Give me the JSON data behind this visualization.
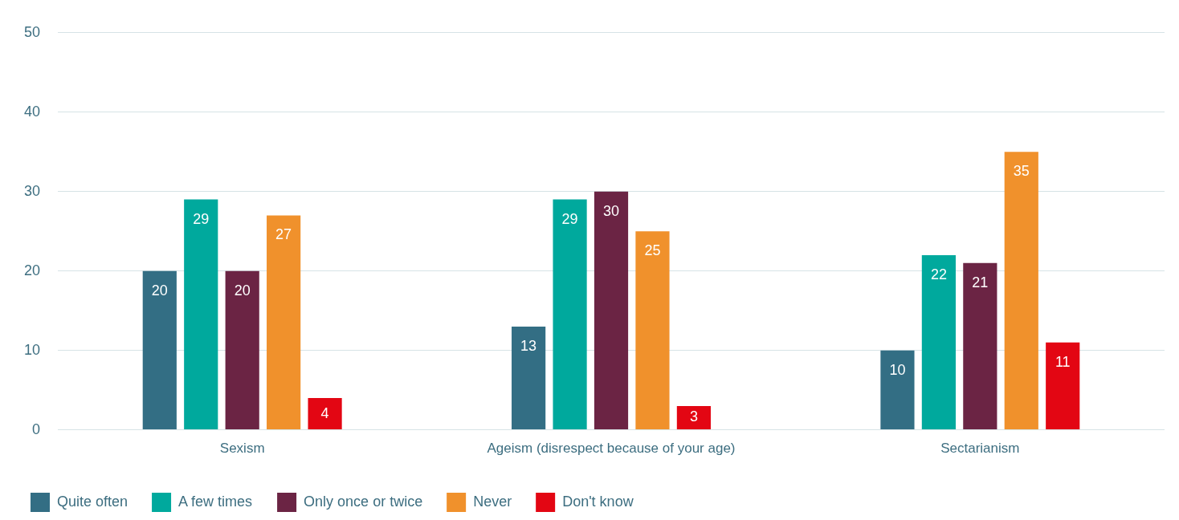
{
  "chart_data": {
    "type": "bar",
    "categories": [
      "Sexism",
      "Ageism (disrespect because of your age)",
      "Sectarianism"
    ],
    "series": [
      {
        "name": "Quite often",
        "color": "#336e84",
        "values": [
          20,
          13,
          10
        ]
      },
      {
        "name": "A few times",
        "color": "#00a99d",
        "values": [
          29,
          29,
          22
        ]
      },
      {
        "name": "Only once or twice",
        "color": "#6b2444",
        "values": [
          20,
          30,
          21
        ]
      },
      {
        "name": "Never",
        "color": "#f0912c",
        "values": [
          27,
          25,
          35
        ]
      },
      {
        "name": "Don't know",
        "color": "#e30613",
        "values": [
          4,
          3,
          11
        ]
      }
    ],
    "ylim": [
      0,
      50
    ],
    "yticks": [
      0,
      10,
      20,
      30,
      40,
      50
    ],
    "grid": "y",
    "legend": "bottom left",
    "data_labels": true
  }
}
